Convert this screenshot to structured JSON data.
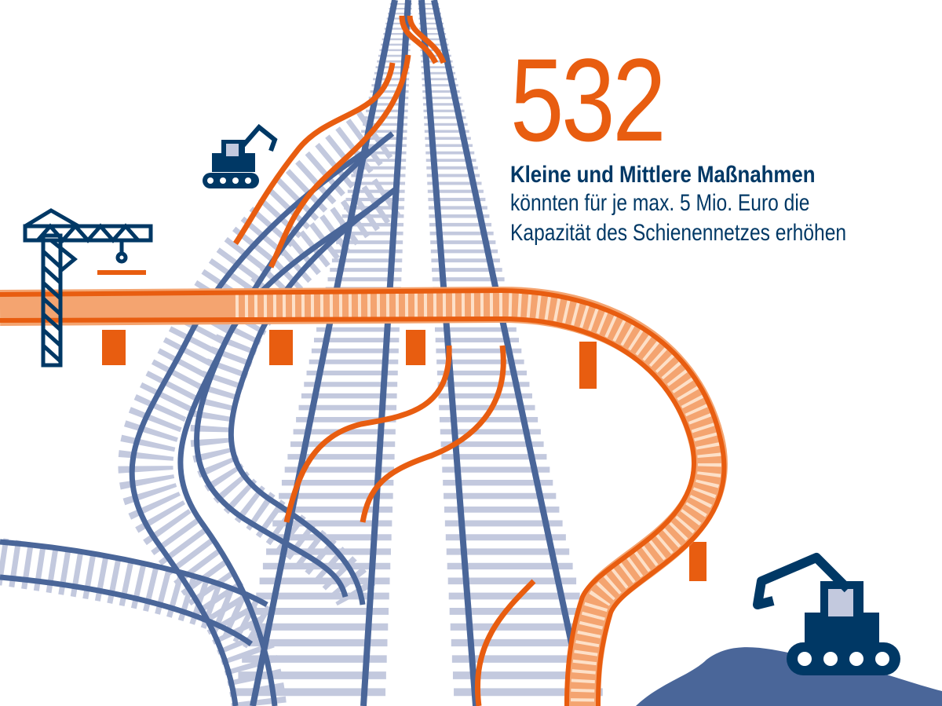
{
  "headline": {
    "number": "532",
    "title": "Kleine und Mittlere Maßnahmen",
    "lines": [
      "könnten für je max. 5 Mio. Euro die",
      "Kapazität des Schienennetzes erhöhen"
    ]
  },
  "colors": {
    "accent": "#e85d10",
    "navy": "#003865",
    "rail": "#4a6699",
    "tie": "#c3c9de",
    "bridge": "#f4a470"
  },
  "icons": [
    "excavator-icon",
    "crane-icon",
    "excavator-icon",
    "hill-icon"
  ]
}
